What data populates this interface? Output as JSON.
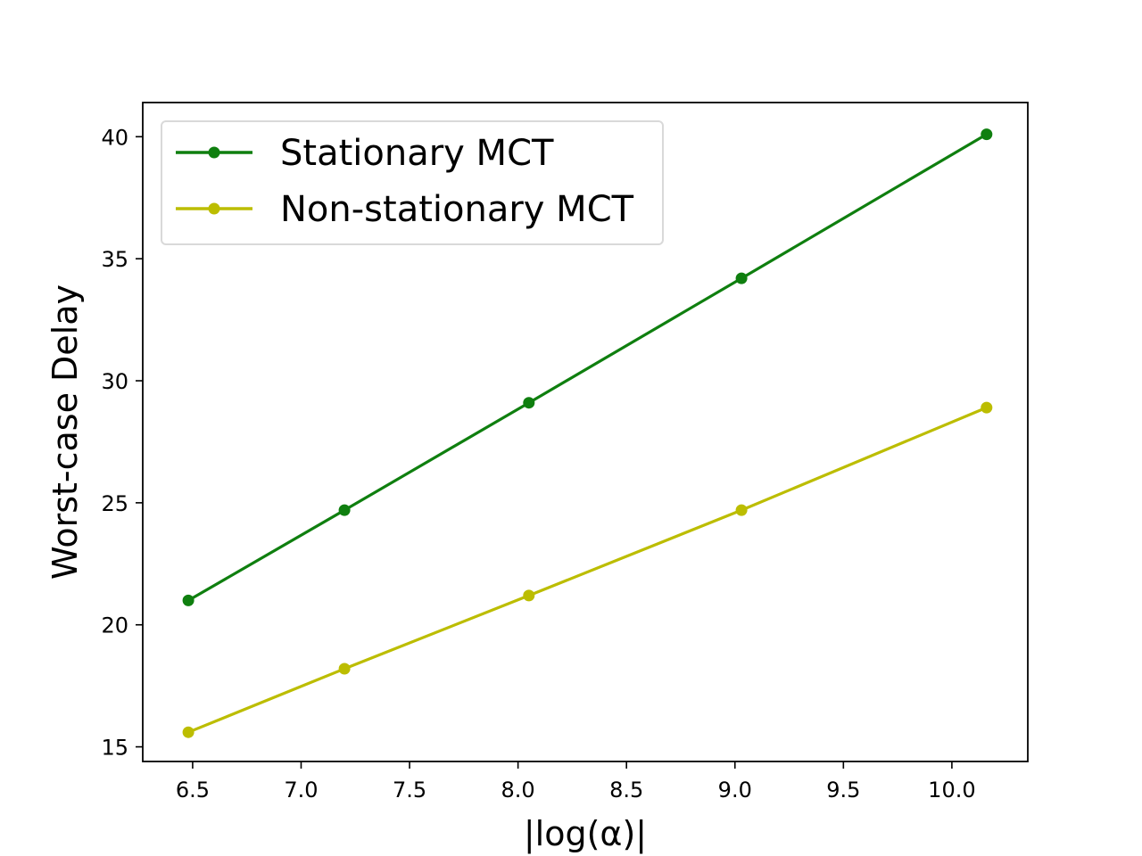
{
  "chart_data": {
    "type": "line",
    "title": "",
    "xlabel": "|log(α)|",
    "ylabel": "Worst-case Delay",
    "xlim": [
      6.27,
      10.35
    ],
    "ylim": [
      14.4,
      41.4
    ],
    "xticks": [
      6.5,
      7.0,
      7.5,
      8.0,
      8.5,
      9.0,
      9.5,
      10.0
    ],
    "xtick_labels": [
      "6.5",
      "7.0",
      "7.5",
      "8.0",
      "8.5",
      "9.0",
      "9.5",
      "10.0"
    ],
    "yticks": [
      15,
      20,
      25,
      30,
      35,
      40
    ],
    "ytick_labels": [
      "15",
      "20",
      "25",
      "30",
      "35",
      "40"
    ],
    "grid": false,
    "legend_position": "top-left",
    "x": [
      6.48,
      7.2,
      8.05,
      9.03,
      10.16
    ],
    "series": [
      {
        "name": "Stationary MCT",
        "color": "#0f7f0f",
        "values": [
          21.0,
          24.7,
          29.1,
          34.2,
          40.1
        ]
      },
      {
        "name": "Non-stationary MCT",
        "color": "#bcbd00",
        "values": [
          15.6,
          18.2,
          21.2,
          24.7,
          28.9
        ]
      }
    ]
  }
}
